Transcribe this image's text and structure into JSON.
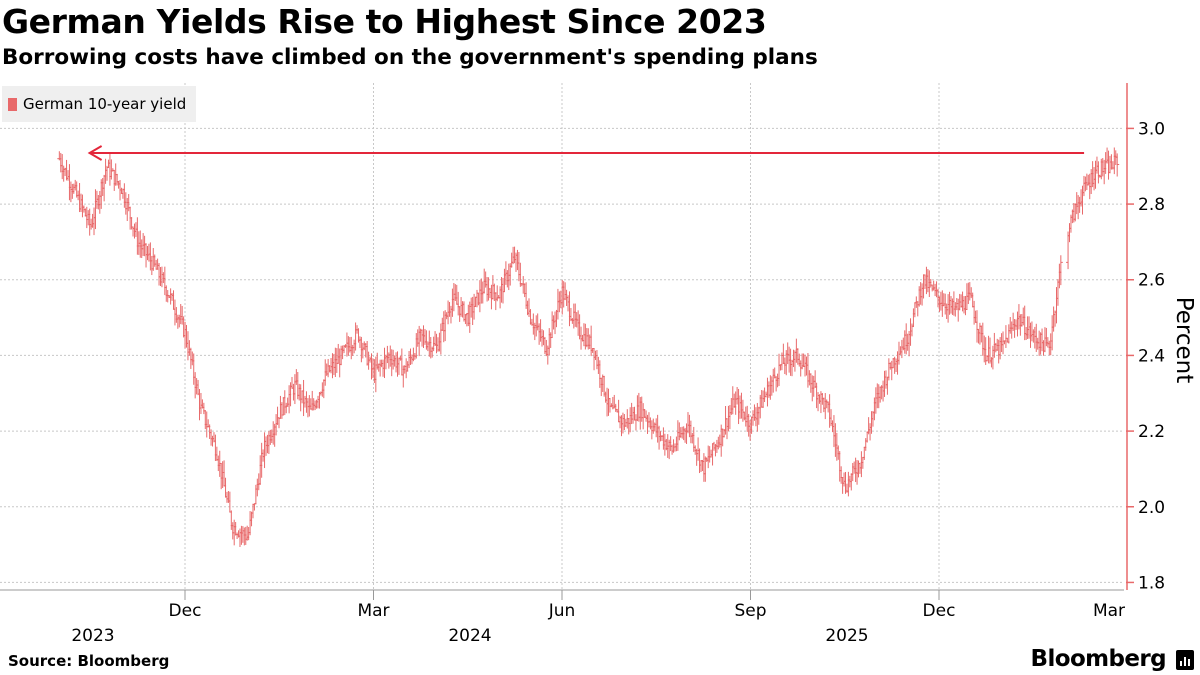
{
  "chart_data": {
    "type": "line",
    "style": "ohlc-bars",
    "title": "German Yields Rise to Highest Since 2023",
    "subtitle": "Borrowing costs have climbed on the government's spending plans",
    "ylabel": "Percent",
    "xlabel": "",
    "ylim": [
      1.78,
      3.12
    ],
    "yticks": [
      1.8,
      2.0,
      2.2,
      2.4,
      2.6,
      2.8,
      3.0
    ],
    "ytick_labels": [
      "1.8",
      "2.0",
      "2.2",
      "2.4",
      "2.6",
      "2.8",
      "3.0"
    ],
    "xlim": [
      0,
      16.85
    ],
    "xticks": [
      {
        "pos": 2,
        "label": "Dec",
        "year": "2023"
      },
      {
        "pos": 5,
        "label": "Mar",
        "year": ""
      },
      {
        "pos": 8,
        "label": "Jun",
        "year": "2024"
      },
      {
        "pos": 11,
        "label": "Sep",
        "year": ""
      },
      {
        "pos": 14,
        "label": "Dec",
        "year": "2025"
      },
      {
        "pos": 17,
        "label": "Mar",
        "year": ""
      }
    ],
    "series": [
      {
        "name": "German 10-year yield",
        "color": "#e8696a",
        "x": [
          0,
          0.5,
          0.75,
          1.0,
          1.25,
          1.5,
          1.75,
          2.0,
          2.25,
          2.5,
          2.75,
          3.0,
          3.25,
          3.5,
          3.75,
          4.0,
          4.25,
          4.5,
          4.75,
          5.0,
          5.25,
          5.5,
          5.75,
          6.0,
          6.25,
          6.5,
          6.75,
          7.0,
          7.25,
          7.5,
          7.75,
          8.0,
          8.25,
          8.5,
          8.75,
          9.0,
          9.25,
          9.5,
          9.75,
          10.0,
          10.25,
          10.5,
          10.75,
          11.0,
          11.25,
          11.5,
          11.75,
          12.0,
          12.25,
          12.5,
          12.75,
          13.0,
          13.25,
          13.5,
          13.75,
          14.0,
          14.25,
          14.5,
          14.75,
          15.0,
          15.25,
          15.5,
          15.75,
          16.0,
          16.25,
          16.5,
          16.75,
          16.85
        ],
        "values": [
          2.92,
          2.74,
          2.9,
          2.84,
          2.7,
          2.64,
          2.56,
          2.46,
          2.26,
          2.15,
          1.95,
          1.92,
          2.15,
          2.25,
          2.32,
          2.25,
          2.35,
          2.4,
          2.46,
          2.35,
          2.4,
          2.36,
          2.45,
          2.42,
          2.55,
          2.5,
          2.58,
          2.56,
          2.66,
          2.5,
          2.42,
          2.57,
          2.47,
          2.42,
          2.26,
          2.22,
          2.26,
          2.2,
          2.15,
          2.22,
          2.1,
          2.18,
          2.28,
          2.22,
          2.3,
          2.38,
          2.4,
          2.32,
          2.25,
          2.05,
          2.12,
          2.28,
          2.38,
          2.45,
          2.6,
          2.55,
          2.52,
          2.55,
          2.4,
          2.42,
          2.5,
          2.45,
          2.42,
          2.71,
          2.82,
          2.89,
          2.9,
          2.92
        ]
      }
    ],
    "annotations": [
      {
        "type": "arrow",
        "from_x": 16.85,
        "to_x": 0.45,
        "y": 2.935,
        "color": "#e3263a"
      }
    ],
    "legend": "top-left",
    "grid": true
  },
  "footer": {
    "source": "Source: Bloomberg",
    "brand": "Bloomberg"
  }
}
